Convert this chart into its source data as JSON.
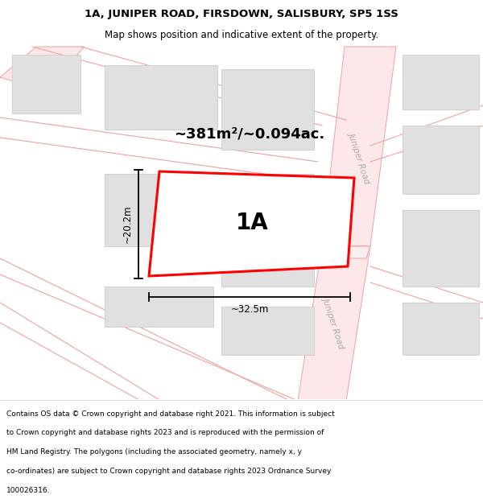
{
  "title_line1": "1A, JUNIPER ROAD, FIRSDOWN, SALISBURY, SP5 1SS",
  "title_line2": "Map shows position and indicative extent of the property.",
  "area_label": "~381m²/~0.094ac.",
  "plot_label": "1A",
  "width_label": "~32.5m",
  "height_label": "~20.2m",
  "footer_lines": [
    "Contains OS data © Crown copyright and database right 2021. This information is subject",
    "to Crown copyright and database rights 2023 and is reproduced with the permission of",
    "HM Land Registry. The polygons (including the associated geometry, namely x, y",
    "co-ordinates) are subject to Crown copyright and database rights 2023 Ordnance Survey",
    "100026316."
  ],
  "bg_color": "#ffffff",
  "map_bg": "#ffffff",
  "road_stroke": "#f0a0a0",
  "road_fill": "#fce8e8",
  "building_fill": "#e0e0e0",
  "building_stroke": "#cccccc",
  "plot_stroke": "#ff0000",
  "text_color": "#000000",
  "dim_color": "#000000",
  "road_label_color": "#aaaaaa",
  "title_fontsize": 9.5,
  "subtitle_fontsize": 8.5,
  "area_fontsize": 13,
  "plot_label_fontsize": 20,
  "dim_fontsize": 8.5,
  "footer_fontsize": 6.5,
  "road_label_fontsize": 7.5
}
